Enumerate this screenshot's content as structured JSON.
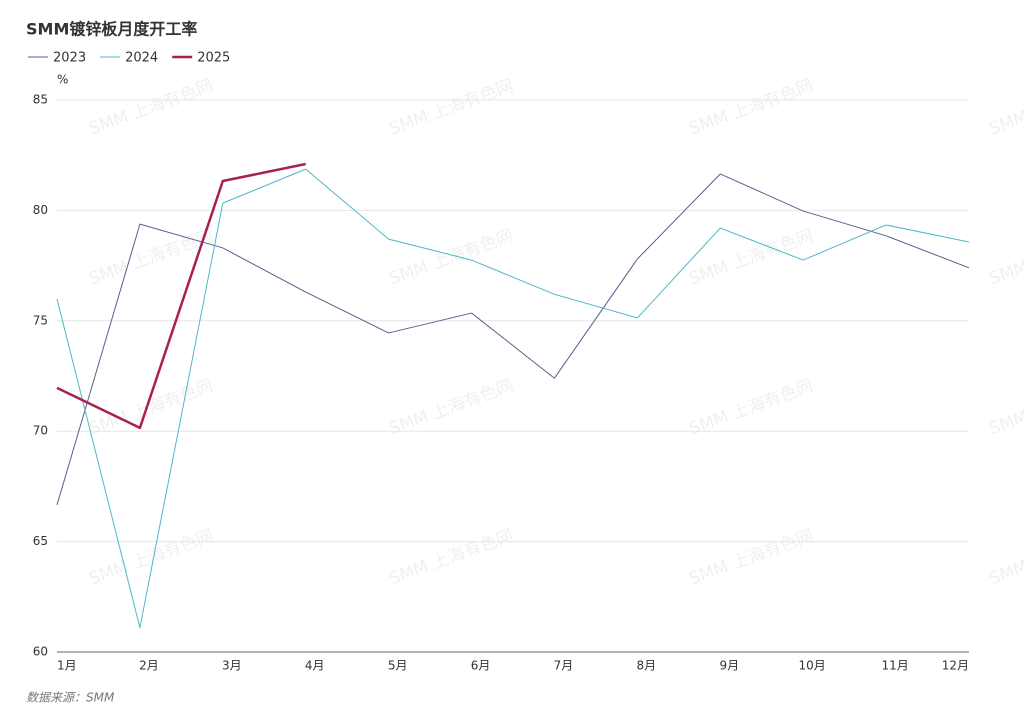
{
  "chart_data": {
    "type": "line",
    "title": "SMM镀锌板月度开工率",
    "y_label": "%",
    "source": "数据来源：SMM",
    "watermark": "SMM 上海有色网",
    "categories": [
      "1月",
      "2月",
      "3月",
      "4月",
      "5月",
      "6月",
      "7月",
      "8月",
      "9月",
      "10月",
      "11月",
      "12月"
    ],
    "series": [
      {
        "name": "2023",
        "color": "#5b5f8f",
        "width": 1,
        "values": [
          66.66,
          79.38,
          78.3,
          76.3,
          74.45,
          75.35,
          72.4,
          77.8,
          81.65,
          79.97,
          78.85,
          77.4
        ]
      },
      {
        "name": "2024",
        "color": "#4fb6c9",
        "width": 1,
        "values": [
          75.99,
          61.1,
          80.33,
          81.87,
          78.7,
          77.75,
          76.2,
          75.13,
          79.2,
          77.75,
          79.34,
          78.57
        ]
      },
      {
        "name": "2025",
        "color": "#a8204f",
        "width": 2.5,
        "values": [
          71.96,
          70.15,
          81.33,
          82.1,
          null,
          null,
          null,
          null,
          null,
          null,
          null,
          null
        ]
      }
    ],
    "ylim": [
      60,
      85
    ],
    "yticks": [
      60,
      65,
      70,
      75,
      80,
      85
    ],
    "grid": true,
    "legend": "top-left"
  }
}
